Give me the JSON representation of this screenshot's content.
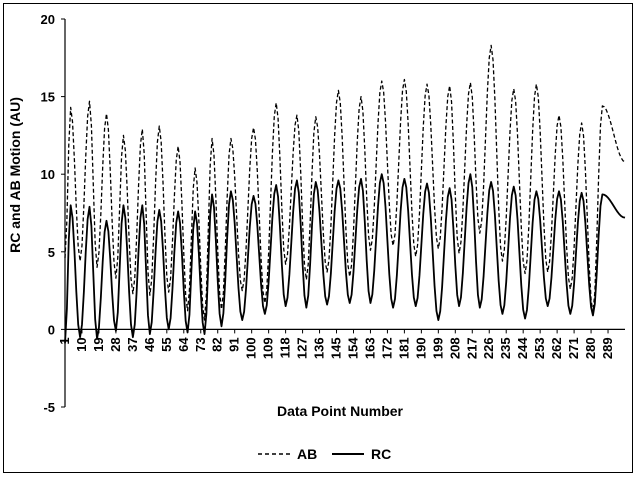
{
  "chart_data": {
    "type": "line",
    "title": "",
    "xlabel": "Data Point Number",
    "ylabel": "RC and AB Motion (AU)",
    "xlim": [
      1,
      298
    ],
    "ylim": [
      -5,
      20
    ],
    "yticks": [
      -5,
      0,
      5,
      10,
      15,
      20
    ],
    "xticks": [
      1,
      10,
      19,
      28,
      37,
      46,
      55,
      64,
      73,
      82,
      91,
      100,
      109,
      118,
      127,
      136,
      145,
      154,
      163,
      172,
      181,
      190,
      199,
      208,
      217,
      226,
      235,
      244,
      253,
      262,
      271,
      280,
      289
    ],
    "grid": false,
    "legend_position": "bottom",
    "series": [
      {
        "name": "AB",
        "style": "dashed",
        "color": "#000000",
        "peaks": [
          {
            "x": 4,
            "y": 14.3
          },
          {
            "x": 14,
            "y": 14.7
          },
          {
            "x": 23,
            "y": 13.9
          },
          {
            "x": 32,
            "y": 12.5
          },
          {
            "x": 42,
            "y": 12.9
          },
          {
            "x": 51,
            "y": 13.1
          },
          {
            "x": 61,
            "y": 11.8
          },
          {
            "x": 70,
            "y": 10.4
          },
          {
            "x": 79,
            "y": 12.3
          },
          {
            "x": 89,
            "y": 12.3
          },
          {
            "x": 101,
            "y": 13.0
          },
          {
            "x": 113,
            "y": 14.6
          },
          {
            "x": 124,
            "y": 13.8
          },
          {
            "x": 134,
            "y": 13.7
          },
          {
            "x": 146,
            "y": 15.4
          },
          {
            "x": 158,
            "y": 15.0
          },
          {
            "x": 169,
            "y": 16.0
          },
          {
            "x": 181,
            "y": 16.1
          },
          {
            "x": 193,
            "y": 15.8
          },
          {
            "x": 205,
            "y": 15.7
          },
          {
            "x": 216,
            "y": 15.9
          },
          {
            "x": 227,
            "y": 18.3
          },
          {
            "x": 239,
            "y": 15.5
          },
          {
            "x": 251,
            "y": 15.8
          },
          {
            "x": 263,
            "y": 13.8
          },
          {
            "x": 275,
            "y": 13.3
          },
          {
            "x": 286,
            "y": 14.4
          }
        ],
        "troughs": [
          {
            "x": 1,
            "y": 4.6
          },
          {
            "x": 9,
            "y": 4.4
          },
          {
            "x": 18,
            "y": 4.0
          },
          {
            "x": 28,
            "y": 3.3
          },
          {
            "x": 37,
            "y": 2.3
          },
          {
            "x": 46,
            "y": 2.2
          },
          {
            "x": 56,
            "y": 2.4
          },
          {
            "x": 66,
            "y": 1.2
          },
          {
            "x": 75,
            "y": 0.6
          },
          {
            "x": 84,
            "y": 1.3
          },
          {
            "x": 95,
            "y": 2.5
          },
          {
            "x": 107,
            "y": 1.7
          },
          {
            "x": 118,
            "y": 4.2
          },
          {
            "x": 129,
            "y": 3.2
          },
          {
            "x": 140,
            "y": 3.7
          },
          {
            "x": 152,
            "y": 3.4
          },
          {
            "x": 163,
            "y": 5.1
          },
          {
            "x": 175,
            "y": 5.4
          },
          {
            "x": 187,
            "y": 4.7
          },
          {
            "x": 199,
            "y": 5.2
          },
          {
            "x": 210,
            "y": 4.9
          },
          {
            "x": 221,
            "y": 6.2
          },
          {
            "x": 233,
            "y": 4.4
          },
          {
            "x": 245,
            "y": 3.6
          },
          {
            "x": 257,
            "y": 3.7
          },
          {
            "x": 269,
            "y": 2.6
          },
          {
            "x": 281,
            "y": 1.1
          },
          {
            "x": 298,
            "y": 10.8
          }
        ]
      },
      {
        "name": "RC",
        "style": "solid",
        "color": "#000000",
        "peaks": [
          {
            "x": 4,
            "y": 8.0
          },
          {
            "x": 14,
            "y": 7.9
          },
          {
            "x": 23,
            "y": 7.0
          },
          {
            "x": 32,
            "y": 8.0
          },
          {
            "x": 42,
            "y": 8.0
          },
          {
            "x": 51,
            "y": 7.7
          },
          {
            "x": 61,
            "y": 7.6
          },
          {
            "x": 70,
            "y": 7.6
          },
          {
            "x": 79,
            "y": 8.7
          },
          {
            "x": 89,
            "y": 8.9
          },
          {
            "x": 101,
            "y": 8.6
          },
          {
            "x": 113,
            "y": 9.3
          },
          {
            "x": 124,
            "y": 9.6
          },
          {
            "x": 134,
            "y": 9.5
          },
          {
            "x": 146,
            "y": 9.6
          },
          {
            "x": 158,
            "y": 9.7
          },
          {
            "x": 169,
            "y": 10.0
          },
          {
            "x": 181,
            "y": 9.7
          },
          {
            "x": 193,
            "y": 9.4
          },
          {
            "x": 205,
            "y": 9.1
          },
          {
            "x": 216,
            "y": 10.0
          },
          {
            "x": 227,
            "y": 9.5
          },
          {
            "x": 239,
            "y": 9.2
          },
          {
            "x": 251,
            "y": 8.9
          },
          {
            "x": 263,
            "y": 8.9
          },
          {
            "x": 275,
            "y": 8.8
          },
          {
            "x": 286,
            "y": 8.7
          }
        ],
        "troughs": [
          {
            "x": 1,
            "y": -0.9
          },
          {
            "x": 9,
            "y": -0.5
          },
          {
            "x": 18,
            "y": -0.6
          },
          {
            "x": 28,
            "y": -0.1
          },
          {
            "x": 37,
            "y": -0.5
          },
          {
            "x": 46,
            "y": -0.3
          },
          {
            "x": 56,
            "y": 0.0
          },
          {
            "x": 66,
            "y": -0.2
          },
          {
            "x": 75,
            "y": -0.3
          },
          {
            "x": 84,
            "y": 0.2
          },
          {
            "x": 95,
            "y": 0.6
          },
          {
            "x": 107,
            "y": 1.0
          },
          {
            "x": 118,
            "y": 1.5
          },
          {
            "x": 129,
            "y": 1.4
          },
          {
            "x": 140,
            "y": 1.6
          },
          {
            "x": 152,
            "y": 1.7
          },
          {
            "x": 163,
            "y": 1.7
          },
          {
            "x": 175,
            "y": 1.4
          },
          {
            "x": 187,
            "y": 1.5
          },
          {
            "x": 199,
            "y": 0.6
          },
          {
            "x": 210,
            "y": 1.5
          },
          {
            "x": 221,
            "y": 1.4
          },
          {
            "x": 233,
            "y": 1.0
          },
          {
            "x": 245,
            "y": 0.7
          },
          {
            "x": 257,
            "y": 1.5
          },
          {
            "x": 269,
            "y": 1.0
          },
          {
            "x": 281,
            "y": 0.9
          },
          {
            "x": 298,
            "y": 7.2
          }
        ]
      }
    ]
  }
}
